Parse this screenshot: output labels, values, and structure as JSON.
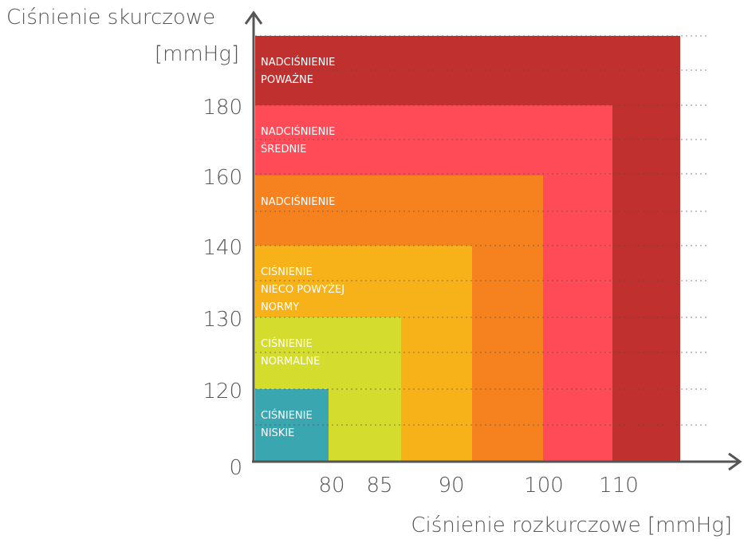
{
  "axes": {
    "y": {
      "title": "Ciśnienie skurczowe",
      "unit": "[mmHg]",
      "ticks": [
        "0",
        "120",
        "130",
        "140",
        "160",
        "180"
      ]
    },
    "x": {
      "title": "Ciśnienie rozkurczowe [mmHg]",
      "ticks": [
        "80",
        "85",
        "90",
        "100",
        "110"
      ]
    }
  },
  "zones": [
    {
      "lines": [
        "NADCIŚNIENIE",
        "POWAŻNE"
      ]
    },
    {
      "lines": [
        "NADCIŚNIENIE",
        "ŚREDNIE"
      ]
    },
    {
      "lines": [
        "NADCIŚNIENIE"
      ]
    },
    {
      "lines": [
        "CIŚNIENIE",
        "NIECO POWYŻEJ",
        "NORMY"
      ]
    },
    {
      "lines": [
        "CIŚNIENIE",
        "NORMALNE"
      ]
    },
    {
      "lines": [
        "CIŚNIENIE",
        "NISKIE"
      ]
    }
  ]
}
